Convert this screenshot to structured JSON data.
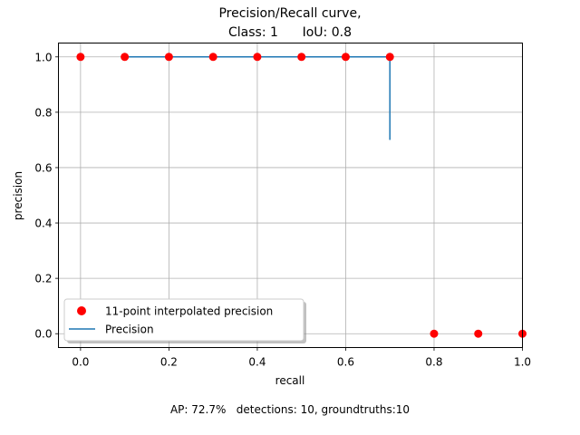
{
  "chart_data": {
    "type": "line",
    "title_lines": [
      "Precision/Recall curve,",
      "Class: 1      IoU: 0.8"
    ],
    "xlabel": "recall",
    "ylabel": "precision",
    "xlim": [
      -0.05,
      1.0
    ],
    "ylim": [
      -0.05,
      1.05
    ],
    "x_ticks": [
      0.0,
      0.2,
      0.4,
      0.6,
      0.8,
      1.0
    ],
    "x_tick_labels": [
      "0.0",
      "0.2",
      "0.4",
      "0.6",
      "0.8",
      "1.0"
    ],
    "y_ticks": [
      0.0,
      0.2,
      0.4,
      0.6,
      0.8,
      1.0
    ],
    "y_tick_labels": [
      "0.0",
      "0.2",
      "0.4",
      "0.6",
      "0.8",
      "1.0"
    ],
    "grid": true,
    "series": [
      {
        "name": "11-point interpolated precision",
        "kind": "scatter",
        "color": "#ff0000",
        "x": [
          0.0,
          0.1,
          0.2,
          0.3,
          0.4,
          0.5,
          0.6,
          0.7,
          0.8,
          0.9,
          1.0
        ],
        "y": [
          1.0,
          1.0,
          1.0,
          1.0,
          1.0,
          1.0,
          1.0,
          1.0,
          0.0,
          0.0,
          0.0
        ]
      },
      {
        "name": "Precision",
        "kind": "line",
        "color": "#1f77b4",
        "x": [
          0.1,
          0.2,
          0.3,
          0.4,
          0.5,
          0.6,
          0.7,
          0.7
        ],
        "y": [
          1.0,
          1.0,
          1.0,
          1.0,
          1.0,
          1.0,
          1.0,
          0.7
        ]
      }
    ],
    "legend_position": "lower-left",
    "footer": "AP: 72.7%   detections: 10, groundtruths:10"
  }
}
